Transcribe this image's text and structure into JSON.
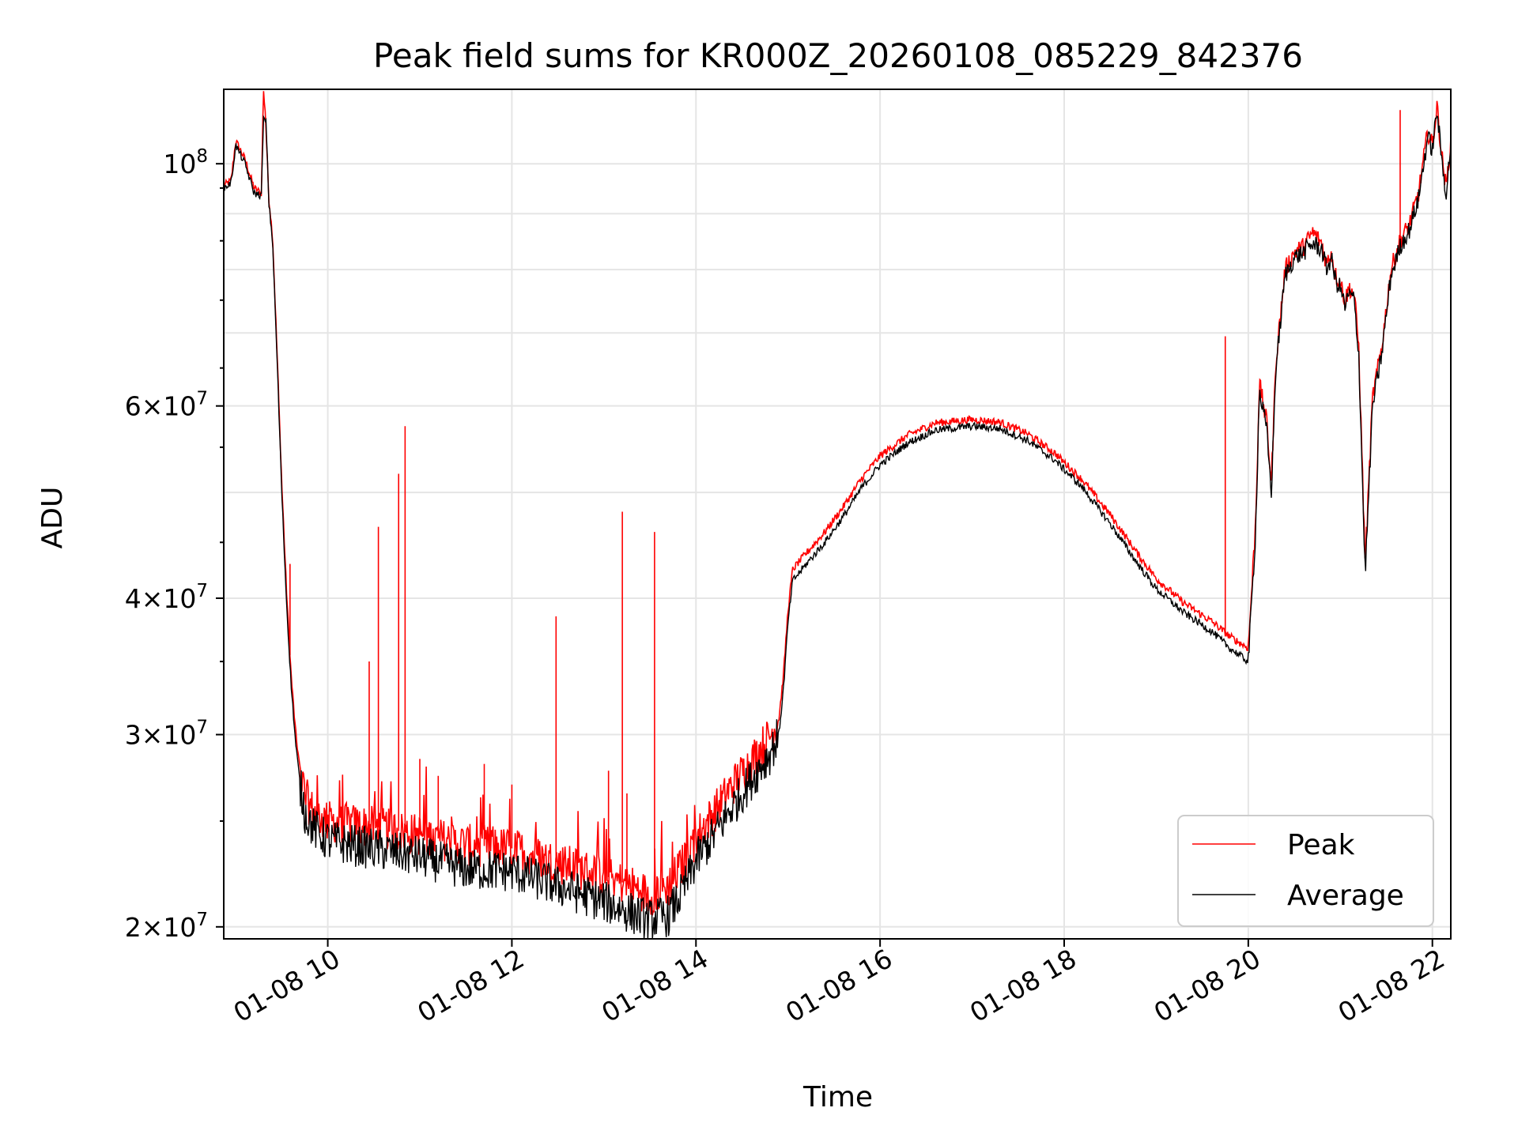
{
  "chart_data": {
    "type": "line",
    "title": "Peak field sums for KR000Z_20260108_085229_842376",
    "xlabel": "Time",
    "ylabel": "ADU",
    "yscale": "log",
    "xlim": [
      8.87,
      22.2
    ],
    "ylim": [
      19500000,
      117000000
    ],
    "grid": true,
    "legend_position": "lower-right",
    "x_ticks": [
      {
        "value": 10,
        "label": "01-08 10"
      },
      {
        "value": 12,
        "label": "01-08 12"
      },
      {
        "value": 14,
        "label": "01-08 14"
      },
      {
        "value": 16,
        "label": "01-08 16"
      },
      {
        "value": 18,
        "label": "01-08 18"
      },
      {
        "value": 20,
        "label": "01-08 20"
      },
      {
        "value": 22,
        "label": "01-08 22"
      }
    ],
    "y_major_ticks": [
      {
        "value": 100000000,
        "base": "10",
        "exp": "8"
      },
      {
        "value": 60000000,
        "mant": "6",
        "base": "10",
        "exp": "7"
      },
      {
        "value": 40000000,
        "mant": "4",
        "base": "10",
        "exp": "7"
      },
      {
        "value": 30000000,
        "mant": "3",
        "base": "10",
        "exp": "7"
      },
      {
        "value": 20000000,
        "mant": "2",
        "base": "10",
        "exp": "7"
      }
    ],
    "y_minor_gridlines": [
      50000000,
      70000000,
      80000000,
      90000000
    ],
    "legend": [
      {
        "name": "Peak",
        "color": "#ff0000"
      },
      {
        "name": "Average",
        "color": "#000000"
      }
    ],
    "series": [
      {
        "name": "Average",
        "color": "#000000",
        "points": [
          [
            8.87,
            95000000
          ],
          [
            8.95,
            96000000
          ],
          [
            9.0,
            104000000
          ],
          [
            9.1,
            100000000
          ],
          [
            9.2,
            94000000
          ],
          [
            9.28,
            93500000
          ],
          [
            9.3,
            110000000
          ],
          [
            9.33,
            109000000
          ],
          [
            9.36,
            92000000
          ],
          [
            9.4,
            85000000
          ],
          [
            9.45,
            66000000
          ],
          [
            9.5,
            50000000
          ],
          [
            9.55,
            40000000
          ],
          [
            9.6,
            33500000
          ],
          [
            9.65,
            29500000
          ],
          [
            9.7,
            27000000
          ],
          [
            9.75,
            25500000
          ],
          [
            9.85,
            24600000
          ],
          [
            10.0,
            24000000
          ],
          [
            10.5,
            23600000
          ],
          [
            11.0,
            23200000
          ],
          [
            11.5,
            22600000
          ],
          [
            12.0,
            22500000
          ],
          [
            12.5,
            21800000
          ],
          [
            13.0,
            21100000
          ],
          [
            13.3,
            20600000
          ],
          [
            13.5,
            20300000
          ],
          [
            13.7,
            20500000
          ],
          [
            13.85,
            21500000
          ],
          [
            14.0,
            23000000
          ],
          [
            14.2,
            24300000
          ],
          [
            14.4,
            25800000
          ],
          [
            14.6,
            27300000
          ],
          [
            14.8,
            28800000
          ],
          [
            14.9,
            30000000
          ],
          [
            14.95,
            33000000
          ],
          [
            15.0,
            38000000
          ],
          [
            15.05,
            41500000
          ],
          [
            15.2,
            43000000
          ],
          [
            15.4,
            45000000
          ],
          [
            15.6,
            47500000
          ],
          [
            15.8,
            50500000
          ],
          [
            16.0,
            53000000
          ],
          [
            16.3,
            55500000
          ],
          [
            16.6,
            57000000
          ],
          [
            17.0,
            57500000
          ],
          [
            17.3,
            57200000
          ],
          [
            17.6,
            55800000
          ],
          [
            17.9,
            53500000
          ],
          [
            18.2,
            50500000
          ],
          [
            18.5,
            46800000
          ],
          [
            18.8,
            43000000
          ],
          [
            19.0,
            40800000
          ],
          [
            19.3,
            38800000
          ],
          [
            19.6,
            37300000
          ],
          [
            19.8,
            36000000
          ],
          [
            20.0,
            35000000
          ],
          [
            20.08,
            46000000
          ],
          [
            20.12,
            62000000
          ],
          [
            20.2,
            57000000
          ],
          [
            20.25,
            50000000
          ],
          [
            20.3,
            65000000
          ],
          [
            20.4,
            79000000
          ],
          [
            20.5,
            82000000
          ],
          [
            20.6,
            83000000
          ],
          [
            20.7,
            84500000
          ],
          [
            20.8,
            83500000
          ],
          [
            20.85,
            80000000
          ],
          [
            20.9,
            82000000
          ],
          [
            20.95,
            78000000
          ],
          [
            21.0,
            77000000
          ],
          [
            21.05,
            74000000
          ],
          [
            21.1,
            76000000
          ],
          [
            21.15,
            75000000
          ],
          [
            21.2,
            67000000
          ],
          [
            21.27,
            42000000
          ],
          [
            21.35,
            60000000
          ],
          [
            21.45,
            67000000
          ],
          [
            21.55,
            79000000
          ],
          [
            21.65,
            84000000
          ],
          [
            21.75,
            87000000
          ],
          [
            21.85,
            93000000
          ],
          [
            21.95,
            106000000
          ],
          [
            22.0,
            103000000
          ],
          [
            22.05,
            112000000
          ],
          [
            22.1,
            101000000
          ],
          [
            22.15,
            94000000
          ],
          [
            22.2,
            104000000
          ]
        ]
      },
      {
        "name": "Peak",
        "color": "#ff0000",
        "points": [
          [
            8.87,
            95500000
          ],
          [
            8.95,
            96500000
          ],
          [
            9.0,
            105000000
          ],
          [
            9.1,
            101000000
          ],
          [
            9.2,
            95000000
          ],
          [
            9.28,
            94000000
          ],
          [
            9.3,
            117000000
          ],
          [
            9.32,
            112000000
          ],
          [
            9.36,
            93000000
          ],
          [
            9.4,
            86000000
          ],
          [
            9.45,
            67000000
          ],
          [
            9.5,
            51000000
          ],
          [
            9.55,
            41000000
          ],
          [
            9.6,
            34200000
          ],
          [
            9.65,
            30200000
          ],
          [
            9.7,
            27800000
          ],
          [
            9.75,
            26400000
          ],
          [
            9.85,
            25400000
          ],
          [
            10.0,
            25000000
          ],
          [
            10.5,
            24700000
          ],
          [
            11.0,
            24300000
          ],
          [
            11.5,
            23800000
          ],
          [
            12.0,
            23600000
          ],
          [
            12.5,
            22900000
          ],
          [
            13.0,
            22300000
          ],
          [
            13.3,
            21800000
          ],
          [
            13.5,
            21400000
          ],
          [
            13.7,
            21800000
          ],
          [
            13.85,
            22800000
          ],
          [
            14.0,
            24200000
          ],
          [
            14.2,
            25500000
          ],
          [
            14.4,
            27000000
          ],
          [
            14.6,
            28400000
          ],
          [
            14.8,
            29900000
          ],
          [
            14.9,
            31000000
          ],
          [
            14.95,
            34000000
          ],
          [
            15.0,
            39000000
          ],
          [
            15.05,
            42500000
          ],
          [
            15.2,
            44000000
          ],
          [
            15.4,
            46000000
          ],
          [
            15.6,
            48500000
          ],
          [
            15.8,
            51500000
          ],
          [
            16.0,
            54000000
          ],
          [
            16.3,
            56400000
          ],
          [
            16.6,
            57900000
          ],
          [
            17.0,
            58300000
          ],
          [
            17.3,
            58000000
          ],
          [
            17.6,
            56600000
          ],
          [
            17.9,
            54300000
          ],
          [
            18.2,
            51300000
          ],
          [
            18.5,
            47700000
          ],
          [
            18.8,
            43900000
          ],
          [
            19.0,
            41700000
          ],
          [
            19.3,
            39600000
          ],
          [
            19.6,
            38100000
          ],
          [
            19.8,
            36900000
          ],
          [
            20.0,
            36000000
          ],
          [
            20.08,
            47000000
          ],
          [
            20.12,
            63000000
          ],
          [
            20.2,
            58000000
          ],
          [
            20.25,
            51000000
          ],
          [
            20.3,
            66000000
          ],
          [
            20.4,
            80000000
          ],
          [
            20.5,
            83000000
          ],
          [
            20.6,
            84000000
          ],
          [
            20.7,
            86500000
          ],
          [
            20.8,
            84500000
          ],
          [
            20.85,
            81000000
          ],
          [
            20.9,
            83000000
          ],
          [
            20.95,
            79000000
          ],
          [
            21.0,
            78000000
          ],
          [
            21.05,
            75000000
          ],
          [
            21.1,
            77000000
          ],
          [
            21.15,
            76000000
          ],
          [
            21.2,
            68000000
          ],
          [
            21.27,
            43000000
          ],
          [
            21.35,
            61000000
          ],
          [
            21.45,
            68000000
          ],
          [
            21.55,
            80000000
          ],
          [
            21.65,
            85000000
          ],
          [
            21.75,
            88000000
          ],
          [
            21.85,
            94000000
          ],
          [
            21.95,
            107000000
          ],
          [
            22.0,
            104000000
          ],
          [
            22.05,
            113000000
          ],
          [
            22.1,
            102000000
          ],
          [
            22.15,
            95000000
          ],
          [
            22.2,
            105000000
          ]
        ],
        "spikes": [
          [
            9.59,
            43000000
          ],
          [
            10.45,
            35000000
          ],
          [
            10.55,
            46500000
          ],
          [
            10.77,
            52000000
          ],
          [
            10.84,
            57500000
          ],
          [
            12.48,
            38500000
          ],
          [
            13.2,
            48000000
          ],
          [
            13.55,
            46000000
          ],
          [
            19.75,
            69500000
          ],
          [
            21.65,
            112000000
          ],
          [
            11.0,
            28500000
          ],
          [
            11.2,
            27500000
          ],
          [
            11.7,
            28200000
          ],
          [
            12.0,
            27000000
          ],
          [
            13.05,
            27800000
          ],
          [
            13.25,
            26500000
          ]
        ]
      }
    ]
  }
}
